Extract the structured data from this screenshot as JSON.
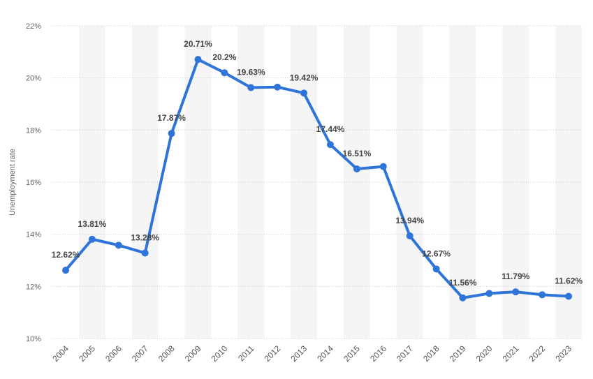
{
  "chart_data": {
    "type": "line",
    "ylabel": "Unemployment rate",
    "ylim": [
      10,
      22
    ],
    "yticks": [
      10,
      12,
      14,
      16,
      18,
      20,
      22
    ],
    "ytick_labels": [
      "10%",
      "12%",
      "14%",
      "16%",
      "18%",
      "20%",
      "22%"
    ],
    "grid": "horizontal dotted",
    "categories": [
      "2004",
      "2005",
      "2006",
      "2007",
      "2008",
      "2009",
      "2010",
      "2011",
      "2012",
      "2013",
      "2014",
      "2015",
      "2016",
      "2017",
      "2018",
      "2019",
      "2020",
      "2021",
      "2022",
      "2023"
    ],
    "series": [
      {
        "color": "#2f74d9",
        "values": [
          12.62,
          13.81,
          13.58,
          13.28,
          17.87,
          20.71,
          20.2,
          19.63,
          19.65,
          19.42,
          17.44,
          16.51,
          16.6,
          13.94,
          12.67,
          11.56,
          11.73,
          11.79,
          11.68,
          11.62
        ],
        "data_labels": [
          "12.62%",
          "13.81%",
          "",
          "13.28%",
          "17.87%",
          "20.71%",
          "20.2%",
          "19.63%",
          "",
          "19.42%",
          "17.44%",
          "16.51%",
          "",
          "13.94%",
          "12.67%",
          "11.56%",
          "",
          "11.79%",
          "",
          "11.62%"
        ]
      }
    ]
  }
}
